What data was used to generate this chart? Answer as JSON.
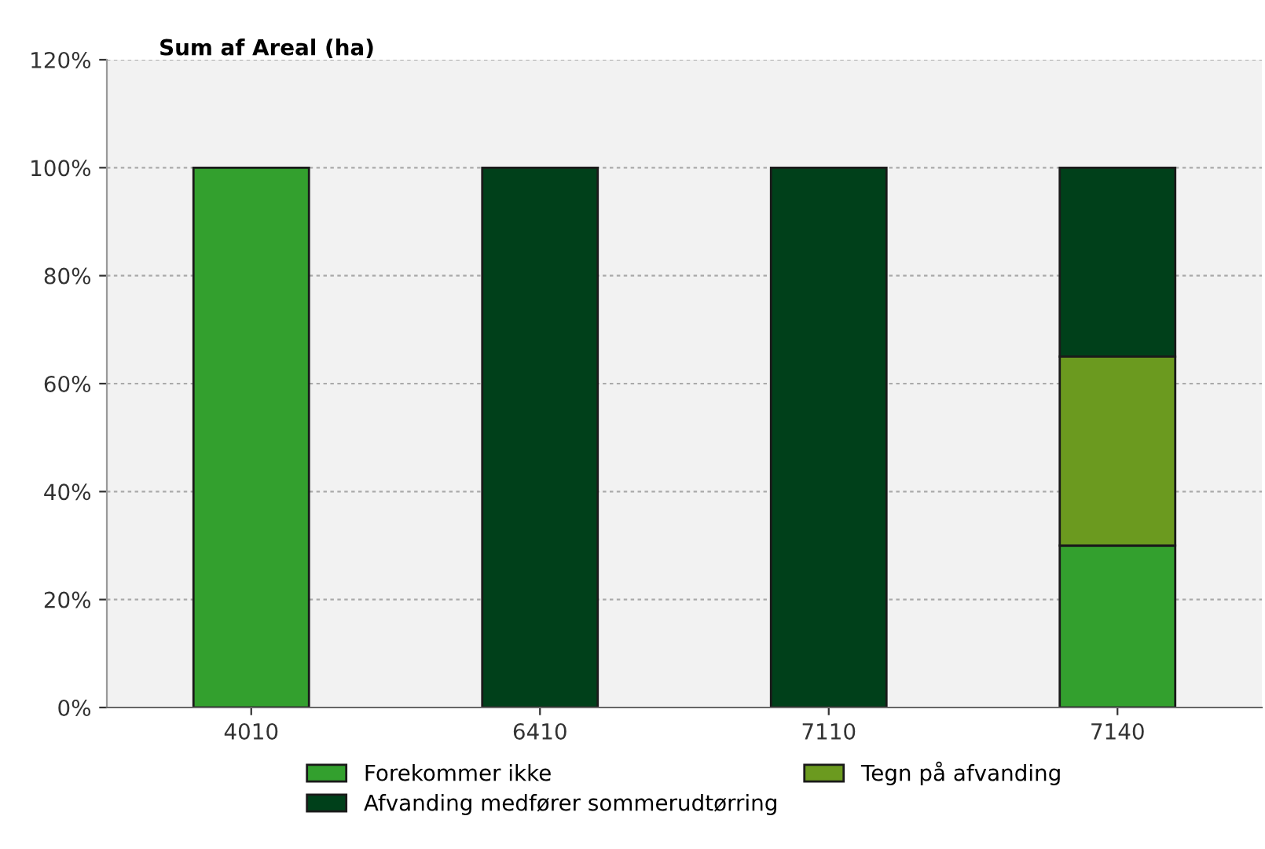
{
  "chart_data": {
    "type": "bar",
    "stacked": true,
    "title": "Sum af Areal (ha)",
    "categories": [
      "4010",
      "6410",
      "7110",
      "7140"
    ],
    "series": [
      {
        "name": "Forekommer ikke",
        "color": "#33a02e",
        "values": [
          100,
          0,
          0,
          30
        ]
      },
      {
        "name": "Tegn på afvanding",
        "color": "#6b9a1f",
        "values": [
          0,
          0,
          0,
          35
        ]
      },
      {
        "name": "Afvanding medfører sommerudtørring",
        "color": "#00401a",
        "values": [
          0,
          100,
          100,
          35
        ]
      }
    ],
    "ylim": [
      0,
      120
    ],
    "yticks": [
      {
        "value": 0,
        "label": "0%"
      },
      {
        "value": 20,
        "label": "20%"
      },
      {
        "value": 40,
        "label": "40%"
      },
      {
        "value": 60,
        "label": "60%"
      },
      {
        "value": 80,
        "label": "80%"
      },
      {
        "value": 100,
        "label": "100%"
      },
      {
        "value": 120,
        "label": "120%"
      }
    ],
    "grid": "y",
    "legend": "bottom"
  }
}
